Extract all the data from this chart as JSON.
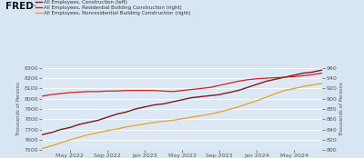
{
  "background_color": "#d8e6f3",
  "plot_bg_color": "#dce9f5",
  "legend_labels": [
    "All Employees, Construction (left)",
    "All Employees, Residential Building Construction (right)",
    "All Employees, Nonresidential Building Construction (right)"
  ],
  "line_colors": [
    "#7b1a1a",
    "#cc2222",
    "#e8a020"
  ],
  "left_ylim": [
    7500,
    8300
  ],
  "right_ylim": [
    800,
    960
  ],
  "left_yticks": [
    7500,
    7600,
    7700,
    7800,
    7900,
    8000,
    8100,
    8200,
    8300
  ],
  "right_yticks": [
    800,
    820,
    840,
    860,
    880,
    900,
    920,
    940,
    960
  ],
  "xtick_labels": [
    "May 2022",
    "Sep 2022",
    "Jan 2023",
    "May 2023",
    "Sep 2023",
    "Jan 2024",
    "May 2024"
  ],
  "xtick_positions": [
    3,
    7,
    11,
    15,
    19,
    23,
    27
  ],
  "construction_left": [
    7650,
    7670,
    7700,
    7720,
    7750,
    7770,
    7790,
    7820,
    7850,
    7870,
    7900,
    7920,
    7940,
    7950,
    7970,
    7990,
    8010,
    8020,
    8030,
    8040,
    8060,
    8080,
    8110,
    8140,
    8170,
    8190,
    8210,
    8230,
    8250,
    8260,
    8280
  ],
  "residential_right": [
    905,
    908,
    910,
    912,
    913,
    914,
    914,
    915,
    915,
    916,
    916,
    916,
    916,
    915,
    914,
    916,
    918,
    920,
    922,
    926,
    930,
    934,
    937,
    939,
    940,
    941,
    942,
    943,
    945,
    947,
    950
  ],
  "nonresidential_right": [
    803,
    808,
    814,
    820,
    825,
    830,
    834,
    838,
    841,
    845,
    848,
    851,
    854,
    856,
    858,
    861,
    864,
    867,
    870,
    874,
    879,
    884,
    890,
    896,
    903,
    910,
    916,
    920,
    924,
    927,
    930
  ],
  "fred_logo_text": "FRED",
  "ylabel_left": "Thousands of Persons",
  "ylabel_right": "Thousands of Persons"
}
